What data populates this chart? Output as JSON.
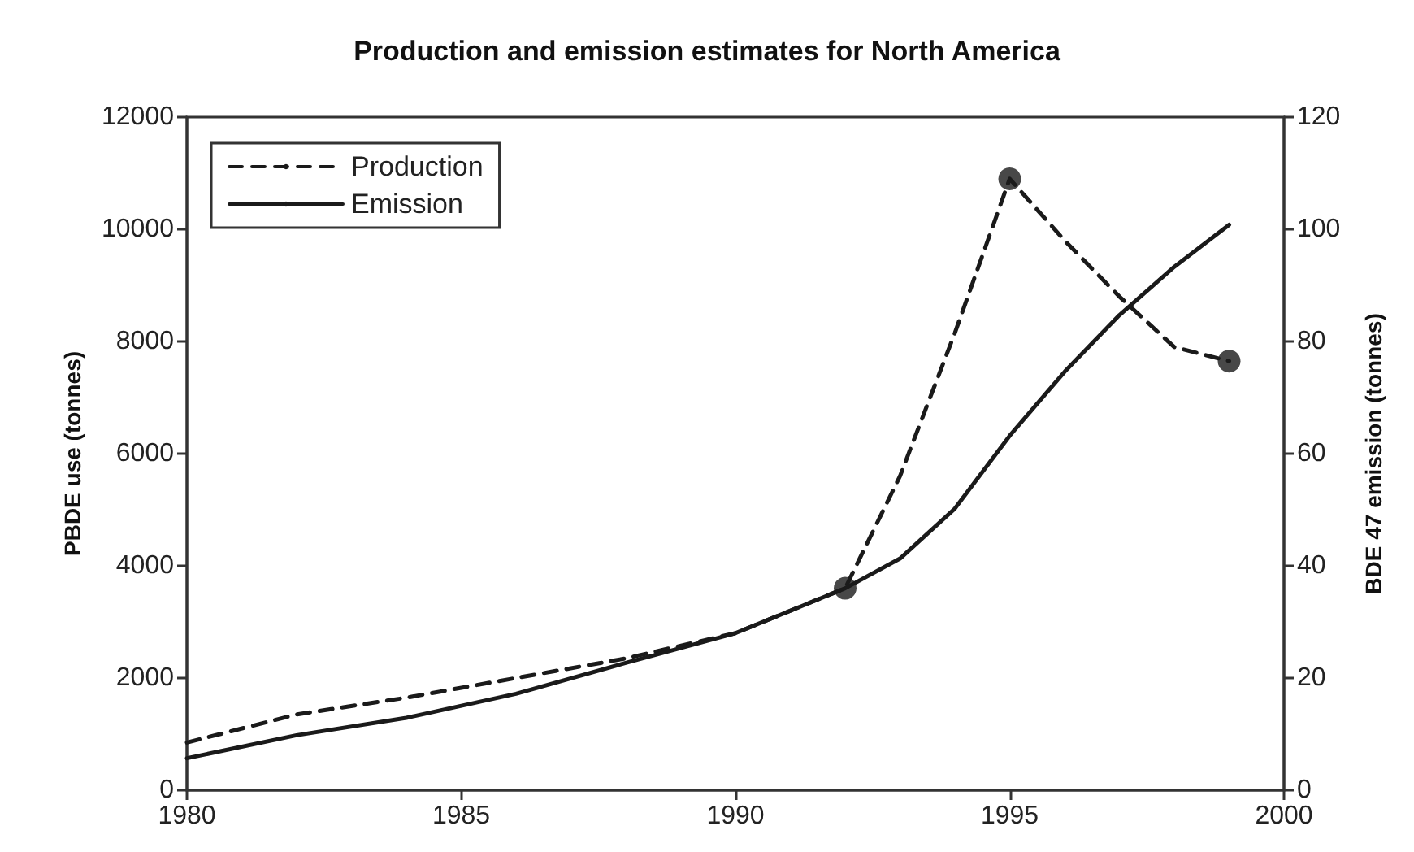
{
  "chart_data": {
    "type": "line",
    "title": "Production and emission estimates for North America",
    "ylabel": "PBDE use (tonnes)",
    "y2label": "BDE 47 emission (tonnes)",
    "xlim": [
      1980,
      2000
    ],
    "xticks": [
      1980,
      1985,
      1990,
      1995,
      2000
    ],
    "ylim": [
      0,
      12000
    ],
    "yticks": [
      0,
      2000,
      4000,
      6000,
      8000,
      10000,
      12000
    ],
    "y2lim": [
      0,
      120
    ],
    "y2ticks": [
      0,
      20,
      40,
      60,
      80,
      100,
      120
    ],
    "grid": false,
    "legend": "top left",
    "marker": "none",
    "series": [
      {
        "name": "Production",
        "color": "#1a1a1a",
        "line_style": "dashed",
        "x": [
          1980,
          1982,
          1984,
          1986,
          1988,
          1990,
          1992,
          1993,
          1994,
          1995,
          1996,
          1997,
          1998,
          1999
        ],
        "values": [
          850,
          1350,
          1650,
          2000,
          2350,
          2800,
          3600,
          5600,
          8150,
          10900,
          9800,
          8800,
          7900,
          7650
        ]
      },
      {
        "name": "Emission",
        "color": "#1a1a1a",
        "line_style": "solid",
        "axis": "y2",
        "x": [
          1980,
          1982,
          1984,
          1986,
          1988,
          1990,
          1991,
          1992,
          1993,
          1994,
          1995,
          1996,
          1997,
          1998,
          1999
        ],
        "values": [
          5.7,
          9.8,
          12.9,
          17.2,
          22.7,
          28,
          32,
          36,
          41.3,
          50.2,
          63.2,
          74.6,
          84.7,
          93.3,
          100.8
        ]
      },
      {
        "type": "scatter",
        "color": "#1a1a1a",
        "marker": "circle",
        "x": [
          1992,
          1995,
          1999
        ],
        "values": [
          3600,
          10900,
          7650
        ]
      }
    ]
  }
}
